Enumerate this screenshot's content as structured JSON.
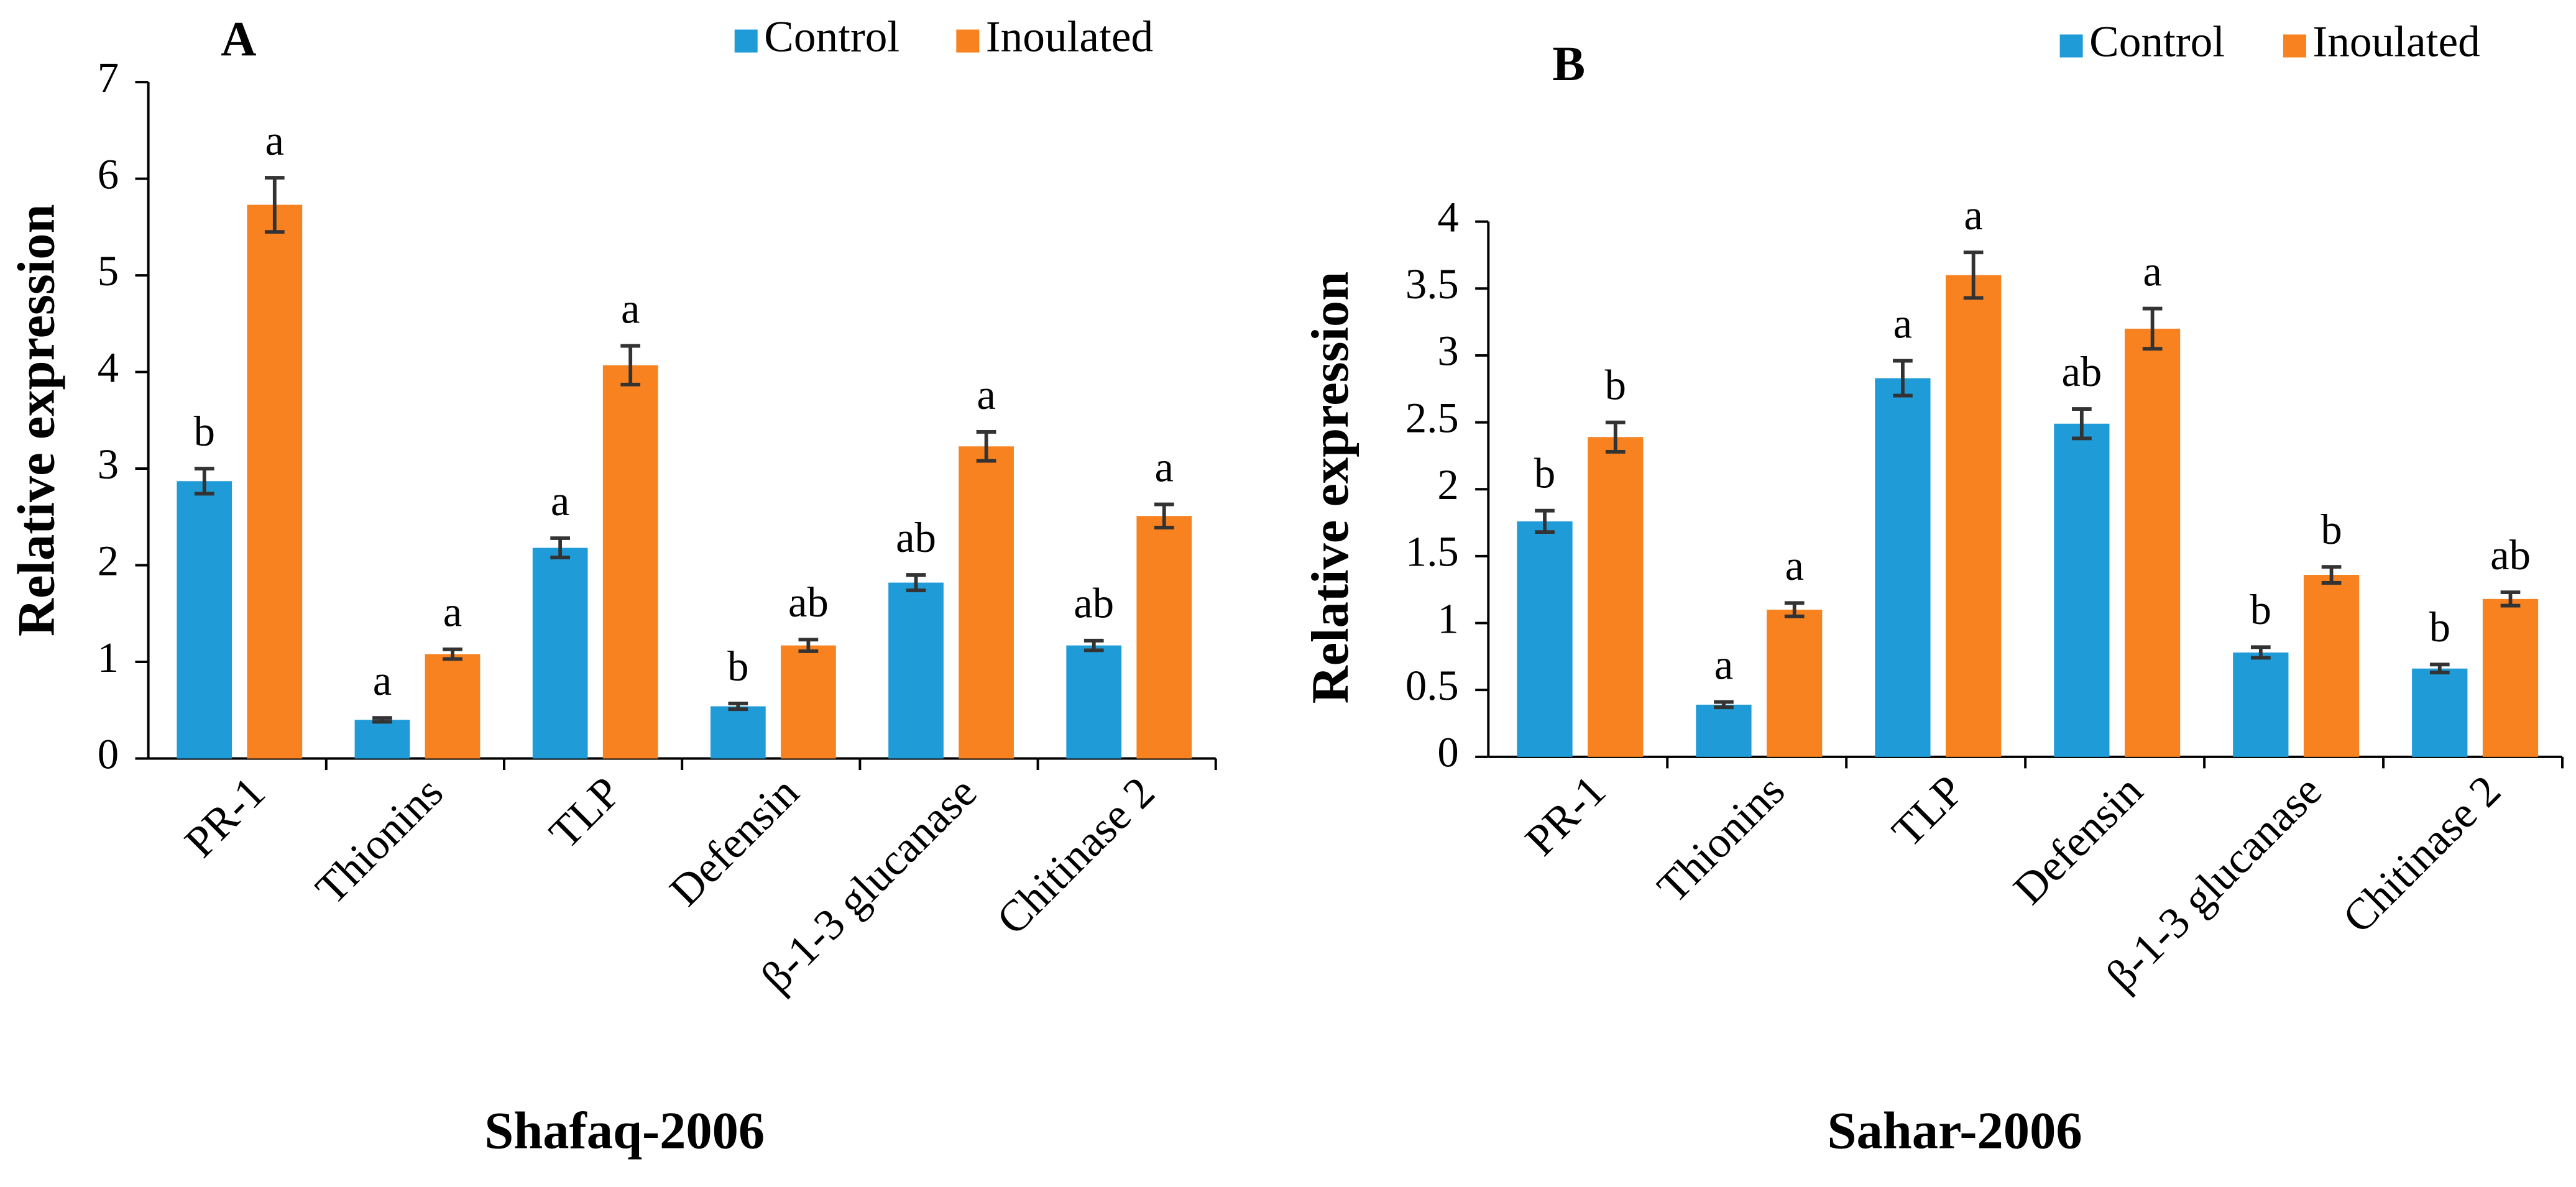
{
  "chart_data": [
    {
      "type": "bar",
      "panel": "A",
      "title": "Shafaq-2006",
      "y_label": "Relative expression",
      "categories": [
        "PR-1",
        "Thionins",
        "TLP",
        "Defensin",
        "β-1-3 glucanase",
        "Chitinase 2"
      ],
      "series": [
        {
          "name": "Control",
          "color": "#1f9bd7",
          "values": [
            2.87,
            0.4,
            2.18,
            0.54,
            1.82,
            1.17
          ],
          "errors": [
            0.13,
            0.02,
            0.1,
            0.03,
            0.08,
            0.05
          ],
          "letters": [
            "b",
            "a",
            "a",
            "b",
            "ab",
            "ab"
          ]
        },
        {
          "name": "Inoulated",
          "color": "#f7821f",
          "values": [
            5.73,
            1.08,
            4.07,
            1.17,
            3.23,
            2.51
          ],
          "errors": [
            0.28,
            0.05,
            0.2,
            0.06,
            0.15,
            0.12
          ],
          "letters": [
            "a",
            "a",
            "a",
            "ab",
            "a",
            "a"
          ]
        }
      ],
      "ylim": [
        0,
        7
      ],
      "yticks": [
        0,
        1,
        2,
        3,
        4,
        5,
        6,
        7
      ]
    },
    {
      "type": "bar",
      "panel": "B",
      "title": "Sahar-2006",
      "y_label": "Relative expression",
      "categories": [
        "PR-1",
        "Thionins",
        "TLP",
        "Defensin",
        "β-1-3 glucanase",
        "Chitinase 2"
      ],
      "series": [
        {
          "name": "Control",
          "color": "#1f9bd7",
          "values": [
            1.76,
            0.39,
            2.83,
            2.49,
            0.78,
            0.66
          ],
          "errors": [
            0.08,
            0.02,
            0.13,
            0.11,
            0.04,
            0.03
          ],
          "letters": [
            "b",
            "a",
            "a",
            "ab",
            "b",
            "b"
          ]
        },
        {
          "name": "Inoulated",
          "color": "#f7821f",
          "values": [
            2.39,
            1.1,
            3.6,
            3.2,
            1.36,
            1.18
          ],
          "errors": [
            0.11,
            0.05,
            0.17,
            0.15,
            0.06,
            0.05
          ],
          "letters": [
            "b",
            "a",
            "a",
            "a",
            "b",
            "ab"
          ]
        }
      ],
      "ylim": [
        0,
        4
      ],
      "yticks": [
        0,
        0.5,
        1,
        1.5,
        2,
        2.5,
        3,
        3.5,
        4
      ]
    }
  ]
}
